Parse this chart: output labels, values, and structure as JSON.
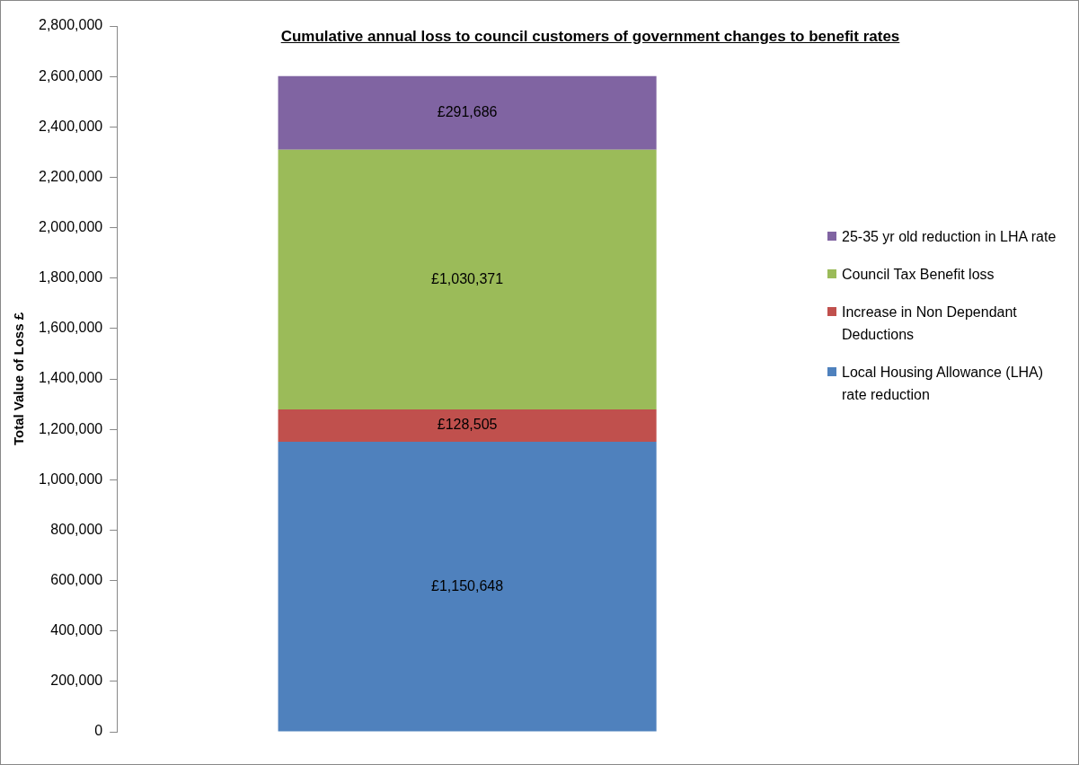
{
  "chart_data": {
    "type": "bar",
    "stacked": true,
    "title": "Cumulative annual loss to council customers of government changes to benefit rates",
    "ylabel": "Total Value of Loss £",
    "categories": [
      null
    ],
    "series": [
      {
        "name": "Local Housing Allowance (LHA) rate reduction",
        "color": "#4f81bd",
        "values": [
          1150648
        ],
        "value_labels": [
          "£1,150,648"
        ]
      },
      {
        "name": "Increase in Non Dependant Deductions",
        "color": "#c0504d",
        "values": [
          128505
        ],
        "value_labels": [
          "£128,505"
        ]
      },
      {
        "name": "Council Tax Benefit loss",
        "color": "#9bbb59",
        "values": [
          1030371
        ],
        "value_labels": [
          "£1,030,371"
        ]
      },
      {
        "name": "25-35 yr old reduction in LHA rate",
        "color": "#8064a2",
        "values": [
          291686
        ],
        "value_labels": [
          "£291,686"
        ]
      }
    ],
    "ylim": [
      0,
      2800000
    ],
    "yticks": [
      {
        "value": 0,
        "label": "0"
      },
      {
        "value": 200000,
        "label": "200,000"
      },
      {
        "value": 400000,
        "label": "400,000"
      },
      {
        "value": 600000,
        "label": "600,000"
      },
      {
        "value": 800000,
        "label": "800,000"
      },
      {
        "value": 1000000,
        "label": "1,000,000"
      },
      {
        "value": 1200000,
        "label": "1,200,000"
      },
      {
        "value": 1400000,
        "label": "1,400,000"
      },
      {
        "value": 1600000,
        "label": "1,600,000"
      },
      {
        "value": 1800000,
        "label": "1,800,000"
      },
      {
        "value": 2000000,
        "label": "2,000,000"
      },
      {
        "value": 2200000,
        "label": "2,200,000"
      },
      {
        "value": 2400000,
        "label": "2,400,000"
      },
      {
        "value": 2600000,
        "label": "2,600,000"
      },
      {
        "value": 2800000,
        "label": "2,800,000"
      }
    ],
    "grid": false,
    "legend": "right"
  }
}
